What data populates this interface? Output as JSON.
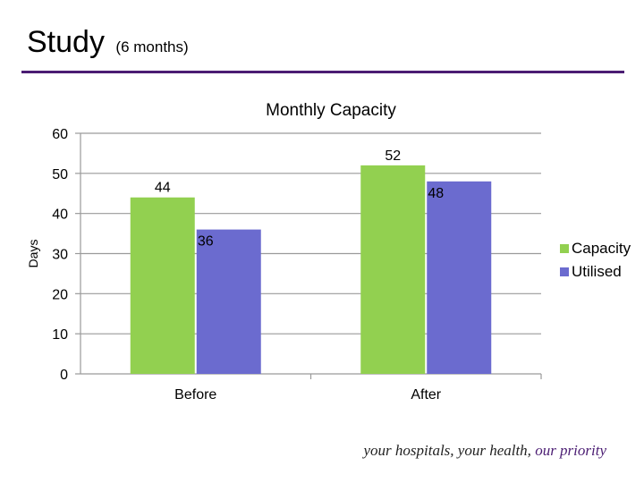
{
  "slide": {
    "title": "Study",
    "subtitle": "(6 months)",
    "footer_main": "your hospitals, your health, ",
    "footer_accent": "our priority"
  },
  "colors": {
    "rule": "#4b1d73",
    "accent": "#4b1d73",
    "capacity": "#92d050",
    "utilised": "#6b6bcf",
    "grid": "#9a9a9a"
  },
  "chart_data": {
    "type": "bar",
    "title": "Monthly Capacity",
    "xlabel": "",
    "ylabel": "Days",
    "categories": [
      "Before",
      "After"
    ],
    "series": [
      {
        "name": "Capacity",
        "values": [
          44,
          52
        ]
      },
      {
        "name": "Utilised",
        "values": [
          36,
          48
        ]
      }
    ],
    "ylim": [
      0,
      60
    ],
    "yticks": [
      0,
      10,
      20,
      30,
      40,
      50,
      60
    ],
    "grid": true,
    "legend": "right",
    "data_labels": true
  }
}
